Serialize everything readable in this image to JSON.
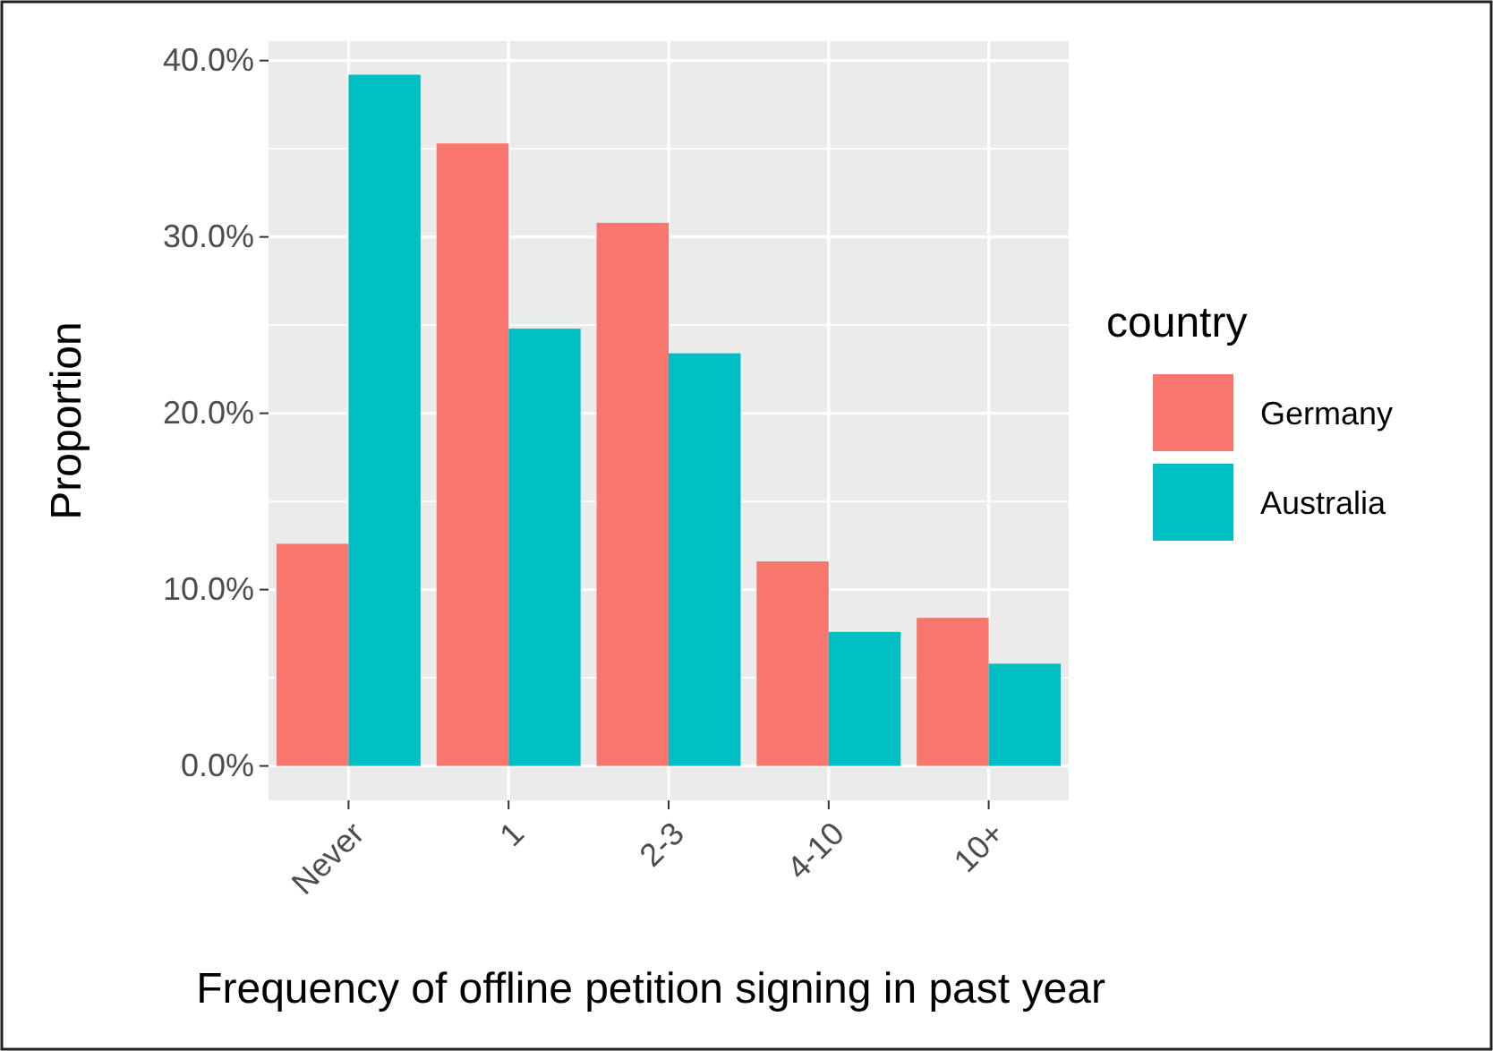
{
  "chart_data": {
    "type": "bar",
    "xlabel": "Frequency of offline petition signing in past year",
    "ylabel": "Proportion",
    "legend_title": "country",
    "categories": [
      "Never",
      "1",
      "2-3",
      "4-10",
      "10+"
    ],
    "series": [
      {
        "name": "Germany",
        "color": "#f8766d",
        "values": [
          12.6,
          35.3,
          30.8,
          11.6,
          8.4
        ]
      },
      {
        "name": "Australia",
        "color": "#00bfc4",
        "values": [
          39.2,
          24.8,
          23.4,
          7.6,
          5.8
        ]
      }
    ],
    "ylim": [
      -1.95,
      41.1
    ],
    "yticks": [
      {
        "value": 0,
        "label": "0.0%"
      },
      {
        "value": 10,
        "label": "10.0%"
      },
      {
        "value": 20,
        "label": "20.0%"
      },
      {
        "value": 30,
        "label": "30.0%"
      },
      {
        "value": 40,
        "label": "40.0%"
      }
    ],
    "grid": true,
    "legend": "right"
  }
}
